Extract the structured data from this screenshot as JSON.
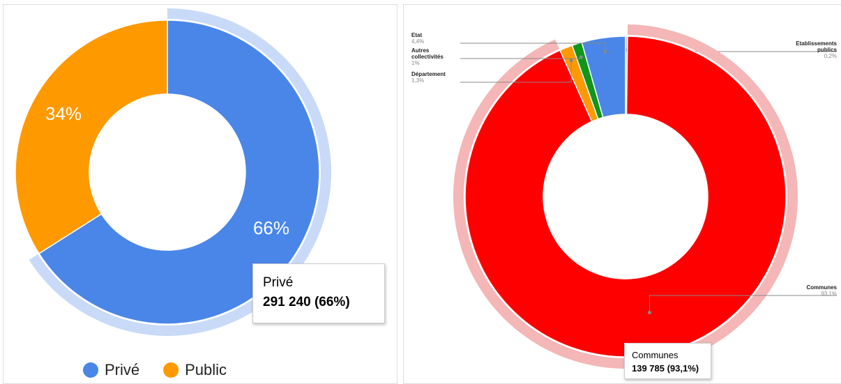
{
  "chart_data": [
    {
      "type": "donut",
      "categories": [
        "Privé",
        "Public"
      ],
      "values": [
        66,
        34
      ],
      "value_labels": [
        "66%",
        "34%"
      ],
      "colors": [
        "#4a86e8",
        "#ff9900"
      ],
      "legend": "bottom",
      "tooltip": {
        "label": "Privé",
        "value": "291 240 (66%)"
      }
    },
    {
      "type": "donut",
      "categories": [
        "Etablissements publics",
        "Communes",
        "Département",
        "Autres collectivités",
        "Etat"
      ],
      "values": [
        0.2,
        93.1,
        1.3,
        1,
        4.4
      ],
      "value_labels": [
        "0,2%",
        "93,1%",
        "1,3%",
        "1%",
        "4,4%"
      ],
      "colors": [
        "#b7b7b7",
        "#ff0000",
        "#ff9900",
        "#109618",
        "#4a86e8"
      ],
      "tooltip": {
        "label": "Communes",
        "value": "139 785 (93,1%)"
      }
    }
  ]
}
